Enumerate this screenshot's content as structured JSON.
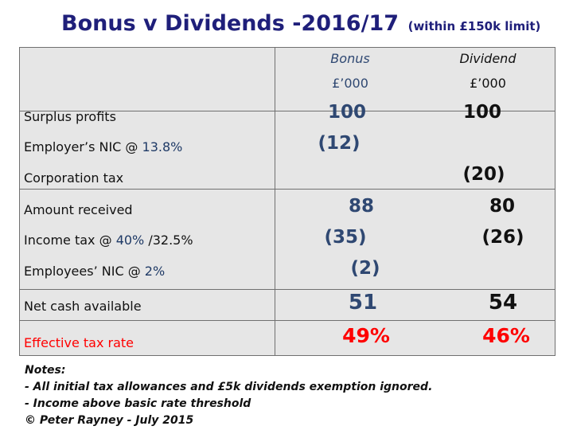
{
  "title": {
    "main": "Bonus v Dividends -2016/17",
    "sub": "(within £150k limit)"
  },
  "header": {
    "bonus": "Bonus",
    "dividend": "Dividend",
    "bonus_unit": "£’000",
    "dividend_unit": "£’000"
  },
  "rows": [
    {
      "label": "Surplus profits",
      "bonus": "100",
      "dividend": "100"
    },
    {
      "label_pre": "Employer’s NIC @ ",
      "label_pct": "13.8%",
      "bonus": "(12)",
      "dividend": ""
    },
    {
      "label": "Corporation tax",
      "bonus": "",
      "dividend": "(20)"
    },
    {
      "label": "Amount received",
      "bonus": "88",
      "dividend": "80"
    },
    {
      "label_pre": "Income tax @ ",
      "label_pct": "40%",
      "label_post": " /32.5%",
      "bonus": "(35)",
      "dividend": "(26)"
    },
    {
      "label_pre": "Employees’ NIC @ ",
      "label_pct": "2%",
      "bonus": "(2)",
      "dividend": ""
    },
    {
      "label": "Net cash available",
      "bonus": "51",
      "dividend": "54"
    },
    {
      "label": "Effective tax rate",
      "bonus": "49%",
      "dividend": "46%"
    }
  ],
  "notes": [
    "Notes:",
    "- All initial tax allowances and £5k dividends exemption ignored.",
    "- Income above basic rate threshold",
    "© Peter Rayney - July 2015"
  ],
  "colors": {
    "title": "#1f1f7a",
    "bonus": "#2f4872",
    "highlight": "#ff0000",
    "table_bg": "#e6e6e6"
  }
}
